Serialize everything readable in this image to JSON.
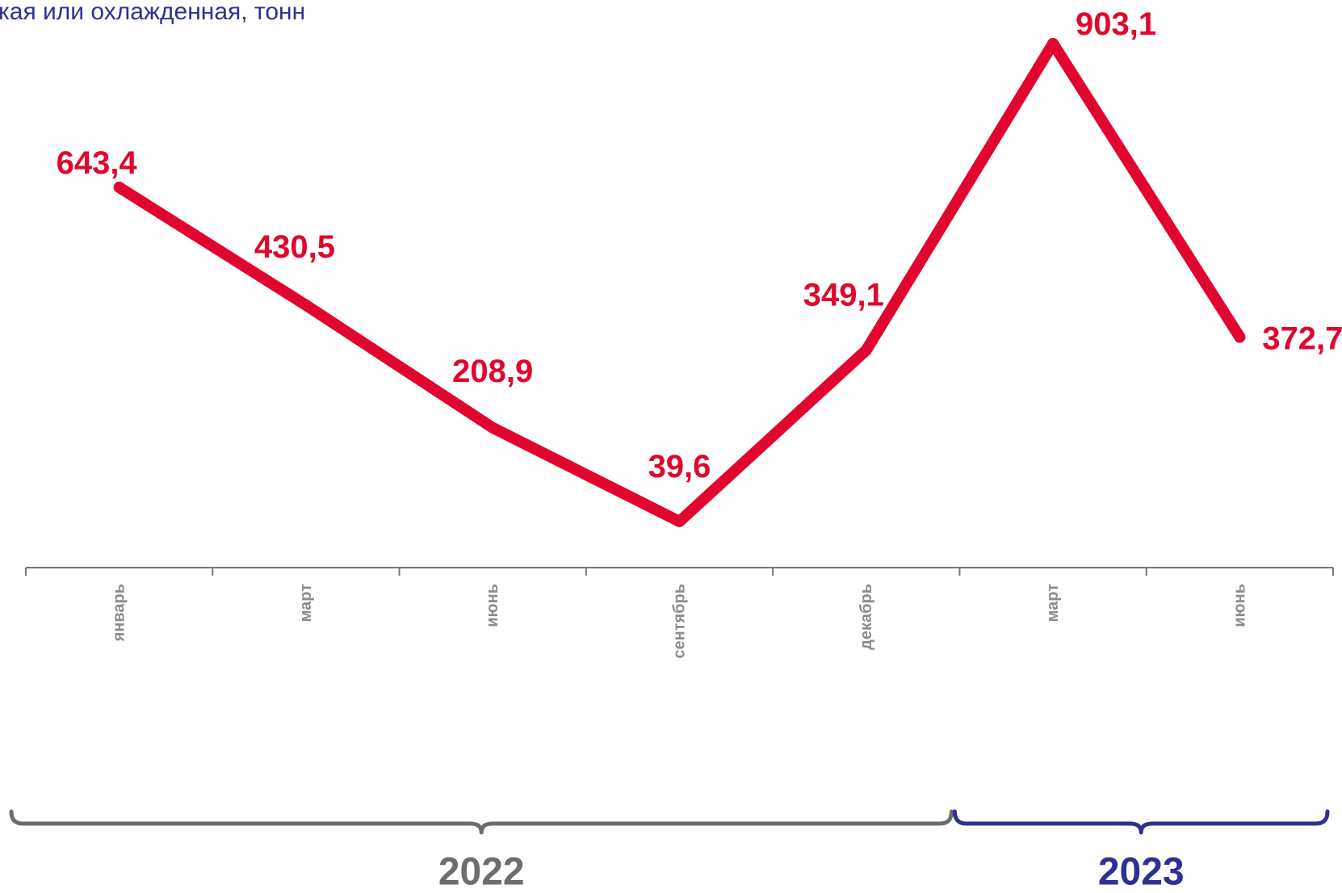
{
  "title": "кая или охлажденная, тонн",
  "colors": {
    "line": "#e1062d",
    "axis": "#777777",
    "tick_label": "#8c8c8c",
    "title": "#2e3192",
    "year_2022": "#6d6d6d",
    "year_2023": "#2e3192"
  },
  "chart_data": {
    "type": "line",
    "categories": [
      "январь",
      "март",
      "июнь",
      "сентябрь",
      "декабрь",
      "март",
      "июнь"
    ],
    "series": [
      {
        "values": [
          643.4,
          430.5,
          208.9,
          39.6,
          349.1,
          903.1,
          372.7
        ]
      }
    ],
    "value_labels": [
      "643,4",
      "430,5",
      "208,9",
      "39,6",
      "349,1",
      "903,1",
      "372,7"
    ],
    "ylim": [
      0,
      1000
    ],
    "grid": false,
    "legend": "none",
    "year_groups": [
      {
        "label": "2022",
        "start": 0,
        "end": 4
      },
      {
        "label": "2023",
        "start": 5,
        "end": 6
      }
    ]
  }
}
